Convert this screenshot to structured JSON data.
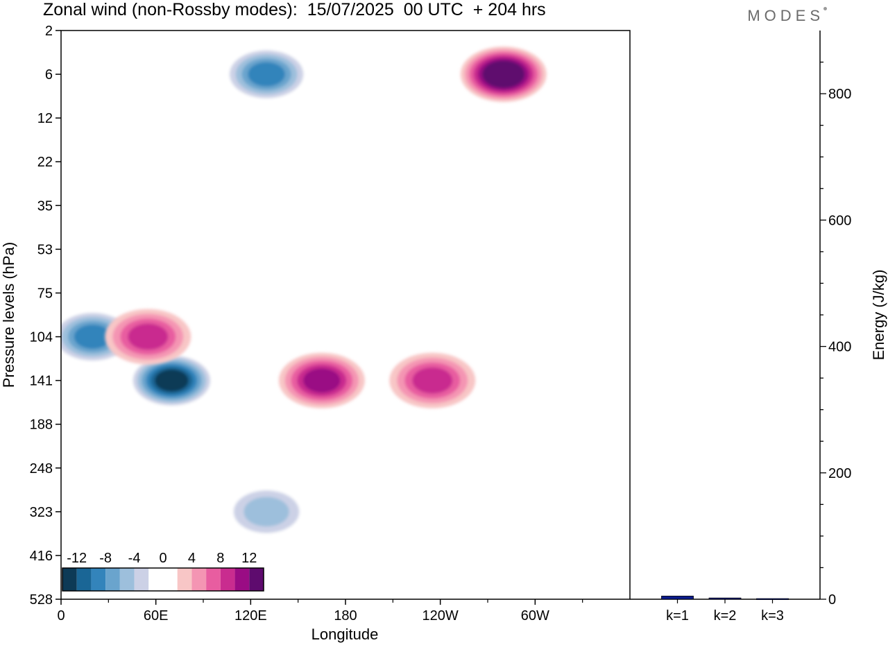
{
  "title": "Zonal wind (non-Rossby modes):  15/07/2025  00 UTC  + 204 hrs",
  "brand": "MODES",
  "chart_data": [
    {
      "type": "heatmap",
      "title": "Zonal wind (non-Rossby modes):  15/07/2025  00 UTC  + 204 hrs",
      "xlabel": "Longitude",
      "ylabel": "Pressure levels (hPa)",
      "x_ticks": [
        "0",
        "60E",
        "120E",
        "180",
        "120W",
        "60W"
      ],
      "x_tick_values": [
        0,
        60,
        120,
        180,
        240,
        300
      ],
      "xlim": [
        0,
        360
      ],
      "y_ticks": [
        "2",
        "6",
        "12",
        "22",
        "35",
        "53",
        "75",
        "104",
        "141",
        "188",
        "248",
        "323",
        "416",
        "528"
      ],
      "colorbar": {
        "labels": [
          "-12",
          "-8",
          "-4",
          "0",
          "4",
          "8",
          "12"
        ],
        "levels": [
          -14,
          -12,
          -10,
          -8,
          -6,
          -4,
          -2,
          2,
          4,
          6,
          8,
          10,
          12,
          14
        ],
        "colors": [
          "#0d3a56",
          "#1a6696",
          "#3384bb",
          "#6aa4cd",
          "#9dbfdc",
          "#ccd1e6",
          "#ffffff",
          "#ffffff",
          "#f8c6c6",
          "#f495b3",
          "#e85da0",
          "#c92c8f",
          "#9a0c84",
          "#5e0b6e"
        ]
      },
      "features": [
        {
          "lon": 70,
          "level": 141,
          "value": -14
        },
        {
          "lon": 20,
          "level": 104,
          "value": -9
        },
        {
          "lon": 165,
          "level": 141,
          "value": 9
        },
        {
          "lon": 235,
          "level": 141,
          "value": 8
        },
        {
          "lon": 280,
          "level": 6,
          "value": 13
        },
        {
          "lon": 130,
          "level": 6,
          "value": -10
        },
        {
          "lon": 55,
          "level": 104,
          "value": 7
        },
        {
          "lon": 130,
          "level": 323,
          "value": -6
        }
      ]
    },
    {
      "type": "bar",
      "ylabel": "Energy (J/kg)",
      "categories": [
        "k=1",
        "k=2",
        "k=3"
      ],
      "values": [
        5,
        2,
        1
      ],
      "ylim": [
        0,
        900
      ],
      "y_ticks": [
        "0",
        "200",
        "400",
        "600",
        "800"
      ]
    }
  ]
}
